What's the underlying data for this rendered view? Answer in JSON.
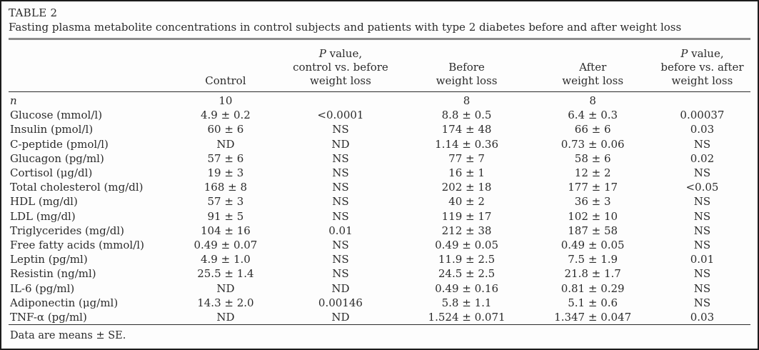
{
  "table": {
    "label": "TABLE 2",
    "caption": "Fasting plasma metabolite concentrations in control subjects and patients with type 2 diabetes before and after weight loss",
    "columns": [
      {
        "key": "parameter",
        "label": ""
      },
      {
        "key": "control",
        "label": "Control"
      },
      {
        "key": "p-control-vs-before",
        "label": "P value,\ncontrol vs. before\nweight loss"
      },
      {
        "key": "before-weight-loss",
        "label": "Before\nweight loss"
      },
      {
        "key": "after-weight-loss",
        "label": "After\nweight loss"
      },
      {
        "key": "p-before-vs-after",
        "label": "P value,\nbefore vs. after\nweight loss"
      }
    ],
    "rows": [
      [
        "n",
        "10",
        "",
        "8",
        "8",
        ""
      ],
      [
        "Glucose (mmol/l)",
        "4.9 ± 0.2",
        "<0.0001",
        "8.8 ± 0.5",
        "6.4 ± 0.3",
        "0.00037"
      ],
      [
        "Insulin (pmol/l)",
        "60 ± 6",
        "NS",
        "174 ± 48",
        "66 ± 6",
        "0.03"
      ],
      [
        "C-peptide (pmol/l)",
        "ND",
        "ND",
        "1.14 ± 0.36",
        "0.73 ± 0.06",
        "NS"
      ],
      [
        "Glucagon (pg/ml)",
        "57 ± 6",
        "NS",
        "77 ± 7",
        "58 ± 6",
        "0.02"
      ],
      [
        "Cortisol (μg/dl)",
        "19 ± 3",
        "NS",
        "16 ± 1",
        "12 ± 2",
        "NS"
      ],
      [
        "Total cholesterol (mg/dl)",
        "168 ± 8",
        "NS",
        "202 ± 18",
        "177 ± 17",
        "<0.05"
      ],
      [
        "HDL (mg/dl)",
        "57 ± 3",
        "NS",
        "40 ± 2",
        "36 ± 3",
        "NS"
      ],
      [
        "LDL (mg/dl)",
        "91 ± 5",
        "NS",
        "119 ± 17",
        "102 ± 10",
        "NS"
      ],
      [
        "Triglycerides (mg/dl)",
        "104 ± 16",
        "0.01",
        "212 ± 38",
        "187 ± 58",
        "NS"
      ],
      [
        "Free fatty acids (mmol/l)",
        "0.49 ± 0.07",
        "NS",
        "0.49 ± 0.05",
        "0.49 ± 0.05",
        "NS"
      ],
      [
        "Leptin (pg/ml)",
        "4.9 ± 1.0",
        "NS",
        "11.9 ± 2.5",
        "7.5 ± 1.9",
        "0.01"
      ],
      [
        "Resistin (ng/ml)",
        "25.5 ± 1.4",
        "NS",
        "24.5 ± 2.5",
        "21.8 ± 1.7",
        "NS"
      ],
      [
        "IL-6 (pg/ml)",
        "ND",
        "ND",
        "0.49 ± 0.16",
        "0.81 ± 0.29",
        "NS"
      ],
      [
        "Adiponectin (μg/ml)",
        "14.3 ± 2.0",
        "0.00146",
        "5.8 ± 1.1",
        "5.1 ± 0.6",
        "NS"
      ],
      [
        "TNF-α (pg/ml)",
        "ND",
        "ND",
        "1.524 ± 0.071",
        "1.347 ± 0.047",
        "0.03"
      ]
    ],
    "footnote": "Data are means ± SE.",
    "colors": {
      "text": "#2b2b2b",
      "border": "#1c1c1c",
      "rule_gray": "#8c8c8c",
      "background": "#fdfdfd"
    }
  }
}
